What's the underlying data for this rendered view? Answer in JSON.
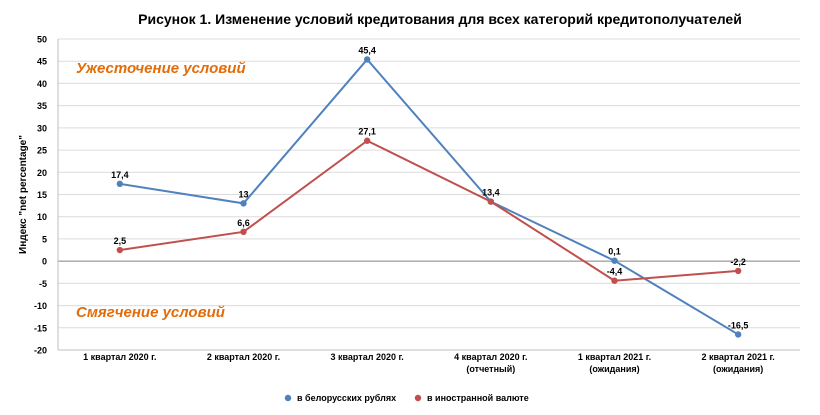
{
  "chart_data": {
    "type": "line",
    "title": "Рисунок 1. Изменение условий кредитования  для всех категорий кредитополучателей",
    "ylabel": "Индекс \"net percentage\"",
    "xlabel": "",
    "ylim": [
      -20,
      50
    ],
    "yticks": [
      50,
      45,
      40,
      35,
      30,
      25,
      20,
      15,
      10,
      5,
      0,
      -5,
      -10,
      -15,
      -20
    ],
    "categories": [
      [
        "1 квартал 2020 г."
      ],
      [
        "2 квартал 2020 г."
      ],
      [
        "3 квартал 2020 г."
      ],
      [
        "4 квартал 2020 г.",
        "(отчетный)"
      ],
      [
        "1 квартал 2021 г.",
        "(ожидания)"
      ],
      [
        "2 квартал 2021 г.",
        "(ожидания)"
      ]
    ],
    "grid": true,
    "legend_position": "bottom",
    "annotations": [
      {
        "text": "Ужесточение условий",
        "y": 43.5,
        "color": "#e36c09"
      },
      {
        "text": "Смягчение условий",
        "y": -11.5,
        "color": "#e36c09"
      }
    ],
    "series": [
      {
        "name": "в белорусских рублях",
        "color": "#4f81bd",
        "values": [
          17.4,
          13,
          45.4,
          13.4,
          0.1,
          -16.5
        ],
        "labels": [
          "17,4",
          "13",
          "45,4",
          "13,4",
          "0,1",
          "-16,5"
        ]
      },
      {
        "name": "в иностранной валюте",
        "color": "#c0504d",
        "values": [
          2.5,
          6.6,
          27.1,
          13.4,
          -4.4,
          -2.2
        ],
        "labels": [
          "2,5",
          "6,6",
          "27,1",
          "",
          "-4,4",
          "-2,2"
        ]
      }
    ]
  }
}
